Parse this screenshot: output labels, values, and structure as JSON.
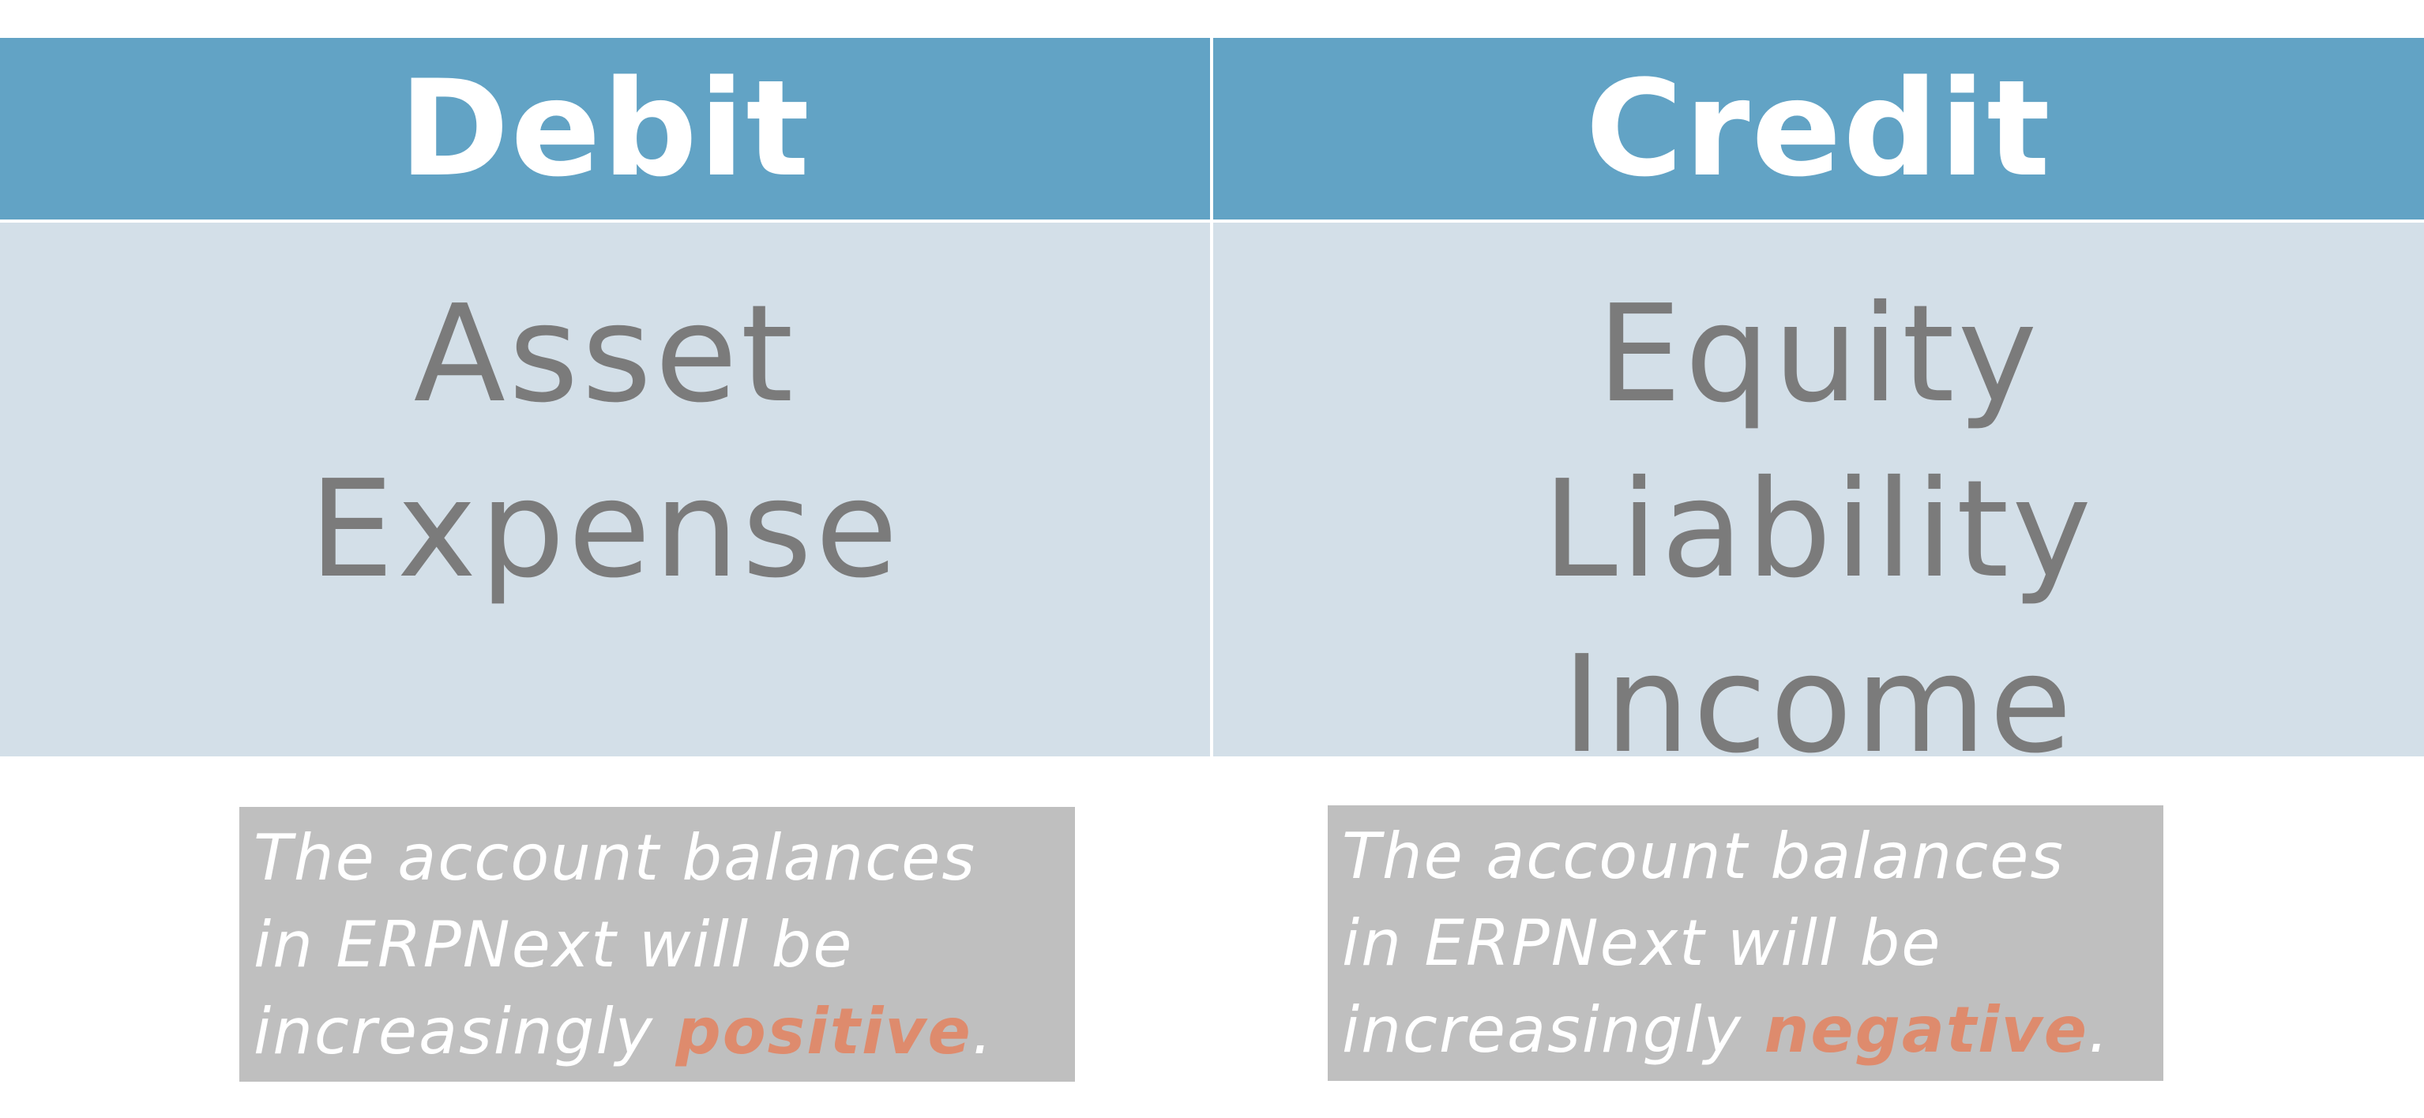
{
  "table": {
    "columns": [
      {
        "header": "Debit",
        "items": [
          "Asset",
          "Expense"
        ]
      },
      {
        "header": "Credit",
        "items": [
          "Equity",
          "Liability",
          "Income"
        ]
      }
    ]
  },
  "notes": [
    {
      "line1": "The account balances",
      "line2": "in ERPNext will be",
      "line3_prefix": "increasingly ",
      "emphasis": "positive",
      "suffix": "."
    },
    {
      "line1": "The account balances",
      "line2": "in ERPNext will be",
      "line3_prefix": "increasingly ",
      "emphasis": "negative",
      "suffix": "."
    }
  ],
  "colors": {
    "header_bg": "#62a3c5",
    "body_bg": "#d3dfe8",
    "item_text": "#7b7b7b",
    "note_bg": "#bfbfbf",
    "emphasis": "#de8b6d"
  }
}
